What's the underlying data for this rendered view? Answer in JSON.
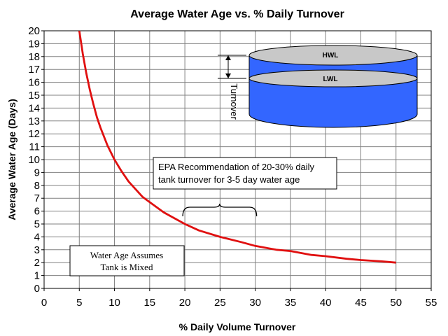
{
  "chart_data": {
    "type": "line",
    "title": "Average Water Age vs. % Daily Turnover",
    "xlabel": "% Daily Volume Turnover",
    "ylabel": "Average Water Age (Days)",
    "xlim": [
      0,
      55
    ],
    "ylim": [
      0,
      20
    ],
    "xticks": [
      0,
      5,
      10,
      15,
      20,
      25,
      30,
      35,
      40,
      45,
      50,
      55
    ],
    "yticks": [
      0,
      1,
      2,
      3,
      4,
      5,
      6,
      7,
      8,
      9,
      10,
      11,
      12,
      13,
      14,
      15,
      16,
      17,
      18,
      19,
      20
    ],
    "grid": true,
    "series": [
      {
        "color": "#e01010",
        "x": [
          5,
          5.5,
          6,
          6.5,
          7,
          7.5,
          8,
          9,
          10,
          11,
          12,
          13,
          14,
          15,
          17,
          20,
          22,
          25,
          28,
          30,
          33,
          35,
          38,
          40,
          43,
          45,
          48,
          50
        ],
        "y": [
          20,
          18.2,
          16.7,
          15.4,
          14.3,
          13.3,
          12.5,
          11.1,
          10,
          9.1,
          8.3,
          7.7,
          7.1,
          6.7,
          5.9,
          5,
          4.5,
          4,
          3.6,
          3.3,
          3,
          2.9,
          2.6,
          2.5,
          2.3,
          2.2,
          2.1,
          2
        ]
      }
    ],
    "annotations": {
      "epa_text": [
        "EPA Recommendation of 20-30% daily",
        "tank turnover for 3-5 day water age"
      ],
      "epa_range": [
        20,
        30
      ],
      "mixed_text": [
        "Water Age Assumes",
        "Tank is Mixed"
      ],
      "tank_hwl": "HWL",
      "tank_lwl": "LWL",
      "turnover": "Turnover"
    },
    "colors": {
      "curve": "#e01010",
      "tank_fill": "#3366ff",
      "tank_top": "#c8c8c8",
      "grid": "#808080"
    }
  }
}
